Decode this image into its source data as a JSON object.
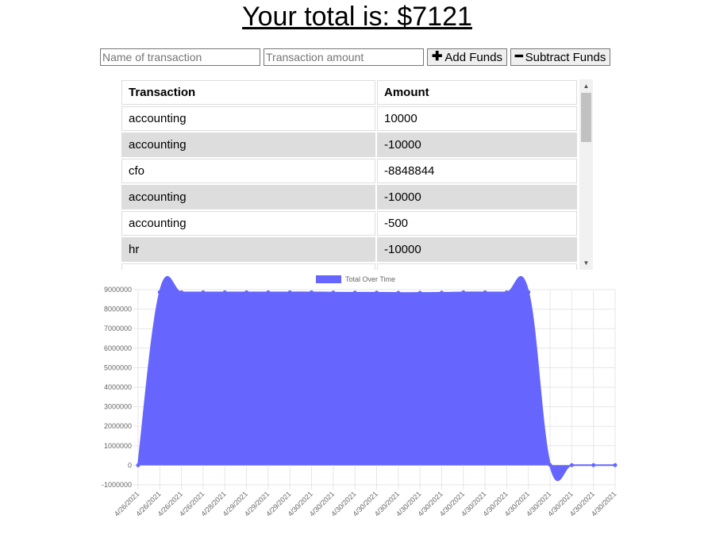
{
  "header": {
    "total_label": "Your total is: $7121"
  },
  "form": {
    "name_placeholder": "Name of transaction",
    "amount_placeholder": "Transaction amount",
    "add_label": "Add Funds",
    "subtract_label": "Subtract Funds",
    "add_icon": "plus-icon",
    "subtract_icon": "minus-icon"
  },
  "table": {
    "headers": [
      "Transaction",
      "Amount"
    ],
    "rows": [
      [
        "accounting",
        "10000"
      ],
      [
        "accounting",
        "-10000"
      ],
      [
        "cfo",
        "-8848844"
      ],
      [
        "accounting",
        "-10000"
      ],
      [
        "accounting",
        "-500"
      ],
      [
        "hr",
        "-10000"
      ],
      [
        "",
        ""
      ]
    ]
  },
  "chart_data": {
    "type": "area",
    "legend": {
      "label": "Total Over Time",
      "position": "top",
      "color": "#6666ff"
    },
    "fill_color": "#6666ff",
    "ylim": [
      -1000000,
      9000000
    ],
    "y_ticks": [
      9000000,
      8000000,
      7000000,
      6000000,
      5000000,
      4000000,
      3000000,
      2000000,
      1000000,
      0,
      -1000000
    ],
    "x": [
      "4/26/2021",
      "4/26/2021",
      "4/26/2021",
      "4/26/2021",
      "4/28/2021",
      "4/29/2021",
      "4/29/2021",
      "4/29/2021",
      "4/30/2021",
      "4/30/2021",
      "4/30/2021",
      "4/30/2021",
      "4/30/2021",
      "4/30/2021",
      "4/30/2021",
      "4/30/2021",
      "4/30/2021",
      "4/30/2021",
      "4/30/2021",
      "4/30/2021",
      "4/30/2021",
      "4/30/2021",
      "4/30/2021"
    ],
    "values": [
      0,
      8870000,
      8860000,
      8860000,
      8860000,
      8860000,
      8860000,
      8860000,
      8860000,
      8850000,
      8840000,
      8840000,
      8830000,
      8830000,
      8840000,
      8860000,
      8860000,
      8860000,
      8870000,
      17144,
      7144,
      7621,
      7121
    ],
    "grid": true
  }
}
